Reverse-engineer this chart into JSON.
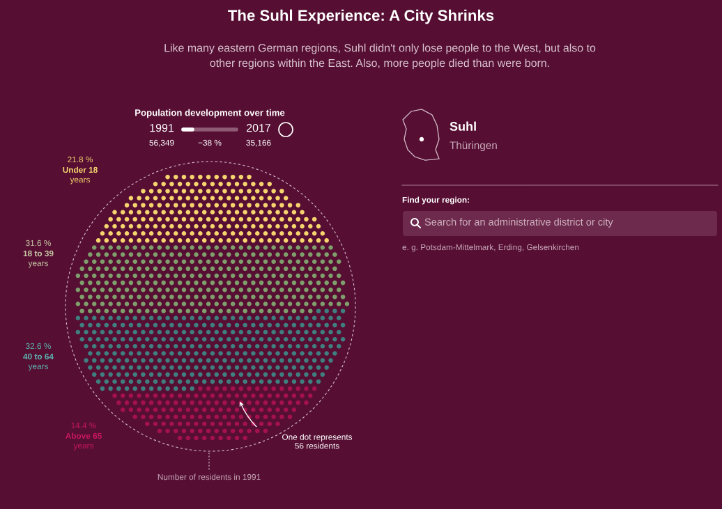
{
  "chart_data": {
    "type": "other",
    "title": "The Suhl Experience: A City Shrinks",
    "subtitle": "Like many eastern German regions, Suhl didn't only lose people to the West, but also to\nother regions within the East. Also, more people died than were born.",
    "categories": [
      "Under 18\nyears",
      "18 to 39\nyears",
      "40 to 64\nyears",
      "Above 65\nyears"
    ],
    "values": [
      21.8,
      31.6,
      32.6,
      14.4
    ],
    "value_labels": [
      "21.8 %",
      "31.6 %",
      "32.6 %",
      "14.4 %"
    ],
    "colors": [
      "#f6d46e",
      "#7f9f6c",
      "#3f7f80",
      "#a4114e"
    ],
    "annotations": [
      "Population development over time",
      "1991",
      "2017",
      "56,349",
      "−38 %",
      "35,166",
      "Suhl",
      "Thüringen",
      "Find your region:",
      "Search for an administrative district or city",
      "e. g. Potsdam-Mittelmark, Erding, Gelsenkirchen",
      "One dot represents\n56 residents",
      "Number of residents in 1991"
    ]
  }
}
